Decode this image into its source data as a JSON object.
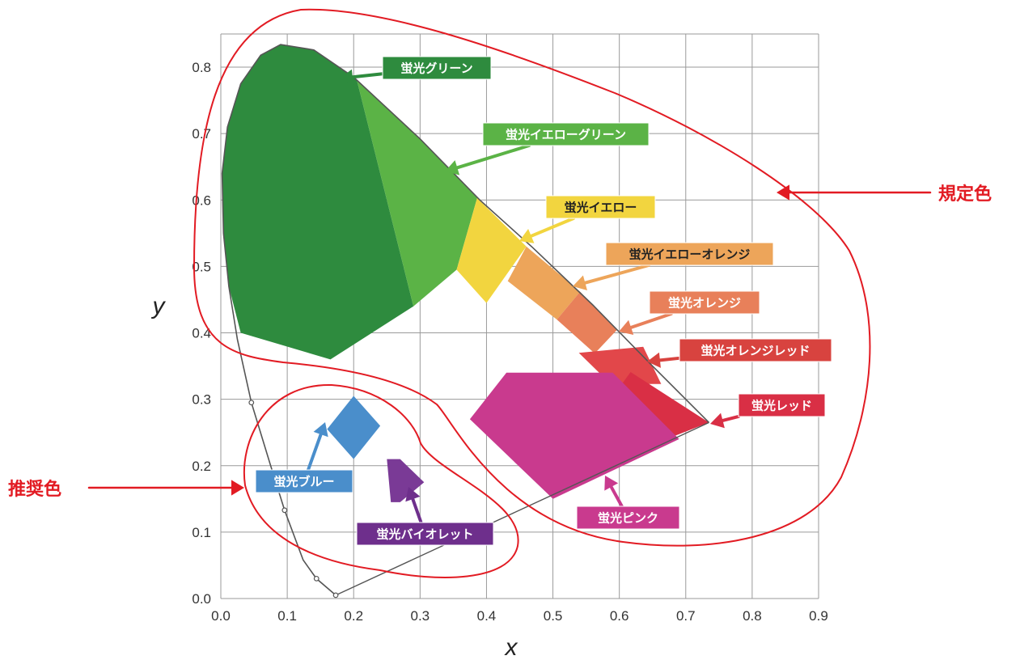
{
  "chart_data": {
    "type": "scatter",
    "xlabel": "x",
    "ylabel": "y",
    "xlim": [
      0.0,
      0.9
    ],
    "ylim": [
      0.0,
      0.85
    ],
    "x_ticks": [
      "0.0",
      "0.1",
      "0.2",
      "0.3",
      "0.4",
      "0.5",
      "0.6",
      "0.7",
      "0.8",
      "0.9"
    ],
    "y_ticks": [
      "0.0",
      "0.1",
      "0.2",
      "0.3",
      "0.4",
      "0.5",
      "0.6",
      "0.7",
      "0.8"
    ],
    "grid": true,
    "spectral_locus": [
      [
        0.173,
        0.005
      ],
      [
        0.144,
        0.03
      ],
      [
        0.124,
        0.058
      ],
      [
        0.096,
        0.133
      ],
      [
        0.075,
        0.2
      ],
      [
        0.046,
        0.295
      ],
      [
        0.025,
        0.39
      ],
      [
        0.012,
        0.47
      ],
      [
        0.004,
        0.55
      ],
      [
        0.002,
        0.64
      ],
      [
        0.01,
        0.71
      ],
      [
        0.03,
        0.775
      ],
      [
        0.06,
        0.818
      ],
      [
        0.09,
        0.834
      ],
      [
        0.14,
        0.826
      ],
      [
        0.2,
        0.785
      ],
      [
        0.3,
        0.692
      ],
      [
        0.39,
        0.6
      ],
      [
        0.47,
        0.528
      ],
      [
        0.56,
        0.442
      ],
      [
        0.65,
        0.35
      ],
      [
        0.735,
        0.265
      ]
    ],
    "locus_markers": [
      [
        0.046,
        0.295
      ],
      [
        0.096,
        0.133
      ],
      [
        0.144,
        0.03
      ],
      [
        0.173,
        0.005
      ]
    ],
    "purple_line": [
      [
        0.173,
        0.005
      ],
      [
        0.735,
        0.265
      ]
    ],
    "series": [
      {
        "name": "蛍光グリーン",
        "color": "#2e8b3e",
        "polygon": [
          [
            0.002,
            0.64
          ],
          [
            0.01,
            0.71
          ],
          [
            0.03,
            0.775
          ],
          [
            0.06,
            0.818
          ],
          [
            0.09,
            0.834
          ],
          [
            0.14,
            0.826
          ],
          [
            0.2,
            0.785
          ],
          [
            0.205,
            0.78
          ],
          [
            0.29,
            0.44
          ],
          [
            0.165,
            0.36
          ],
          [
            0.03,
            0.4
          ],
          [
            0.012,
            0.47
          ],
          [
            0.004,
            0.55
          ]
        ]
      },
      {
        "name": "蛍光イエローグリーン",
        "color": "#5bb346",
        "polygon": [
          [
            0.205,
            0.78
          ],
          [
            0.3,
            0.692
          ],
          [
            0.386,
            0.603
          ],
          [
            0.355,
            0.495
          ],
          [
            0.29,
            0.44
          ]
        ]
      },
      {
        "name": "蛍光イエロー",
        "color": "#f2d53f",
        "polygon": [
          [
            0.386,
            0.603
          ],
          [
            0.46,
            0.53
          ],
          [
            0.4,
            0.445
          ],
          [
            0.355,
            0.495
          ]
        ]
      },
      {
        "name": "蛍光イエローオレンジ",
        "color": "#eda55a",
        "polygon": [
          [
            0.46,
            0.53
          ],
          [
            0.541,
            0.462
          ],
          [
            0.506,
            0.42
          ],
          [
            0.432,
            0.478
          ]
        ]
      },
      {
        "name": "蛍光オレンジ",
        "color": "#e8805a",
        "polygon": [
          [
            0.541,
            0.462
          ],
          [
            0.596,
            0.404
          ],
          [
            0.563,
            0.369
          ],
          [
            0.506,
            0.42
          ]
        ]
      },
      {
        "name": "蛍光オレンジレッド",
        "color": "#e2474a",
        "polygon": [
          [
            0.539,
            0.37
          ],
          [
            0.636,
            0.379
          ],
          [
            0.663,
            0.323
          ],
          [
            0.587,
            0.323
          ]
        ]
      },
      {
        "name": "蛍光レッド",
        "color": "#d92f45",
        "polygon": [
          [
            0.617,
            0.341
          ],
          [
            0.735,
            0.265
          ],
          [
            0.676,
            0.242
          ],
          [
            0.587,
            0.3
          ]
        ]
      },
      {
        "name": "蛍光ピンク",
        "color": "#c93a8e",
        "polygon": [
          [
            0.43,
            0.34
          ],
          [
            0.59,
            0.34
          ],
          [
            0.69,
            0.24
          ],
          [
            0.5,
            0.15
          ],
          [
            0.375,
            0.27
          ]
        ]
      },
      {
        "name": "蛍光ブルー",
        "color": "#4a8ecb",
        "polygon": [
          [
            0.2,
            0.305
          ],
          [
            0.24,
            0.26
          ],
          [
            0.2,
            0.21
          ],
          [
            0.16,
            0.255
          ]
        ]
      },
      {
        "name": "蛍光バイオレット",
        "color": "#7a3a96",
        "polygon": [
          [
            0.25,
            0.21
          ],
          [
            0.27,
            0.21
          ],
          [
            0.306,
            0.175
          ],
          [
            0.27,
            0.145
          ],
          [
            0.256,
            0.145
          ]
        ]
      }
    ],
    "labels": [
      {
        "text": "蛍光グリーン",
        "bg": "#2e8b3e",
        "dark": false
      },
      {
        "text": "蛍光イエローグリーン",
        "bg": "#5bb346",
        "dark": false
      },
      {
        "text": "蛍光イエロー",
        "bg": "#f2d53f",
        "dark": true
      },
      {
        "text": "蛍光イエローオレンジ",
        "bg": "#eda55a",
        "dark": true
      },
      {
        "text": "蛍光オレンジ",
        "bg": "#e8805a",
        "dark": false
      },
      {
        "text": "蛍光オレンジレッド",
        "bg": "#d8433f",
        "dark": false
      },
      {
        "text": "蛍光レッド",
        "bg": "#d92f45",
        "dark": false
      },
      {
        "text": "蛍光ピンク",
        "bg": "#c93a8e",
        "dark": false
      },
      {
        "text": "蛍光ブルー",
        "bg": "#4a8ecb",
        "dark": false
      },
      {
        "text": "蛍光バイオレット",
        "bg": "#6e2f8c",
        "dark": false
      }
    ],
    "annotations": [
      {
        "text": "規定色",
        "color": "#e21b23"
      },
      {
        "text": "推奨色",
        "color": "#e21b23"
      }
    ]
  }
}
